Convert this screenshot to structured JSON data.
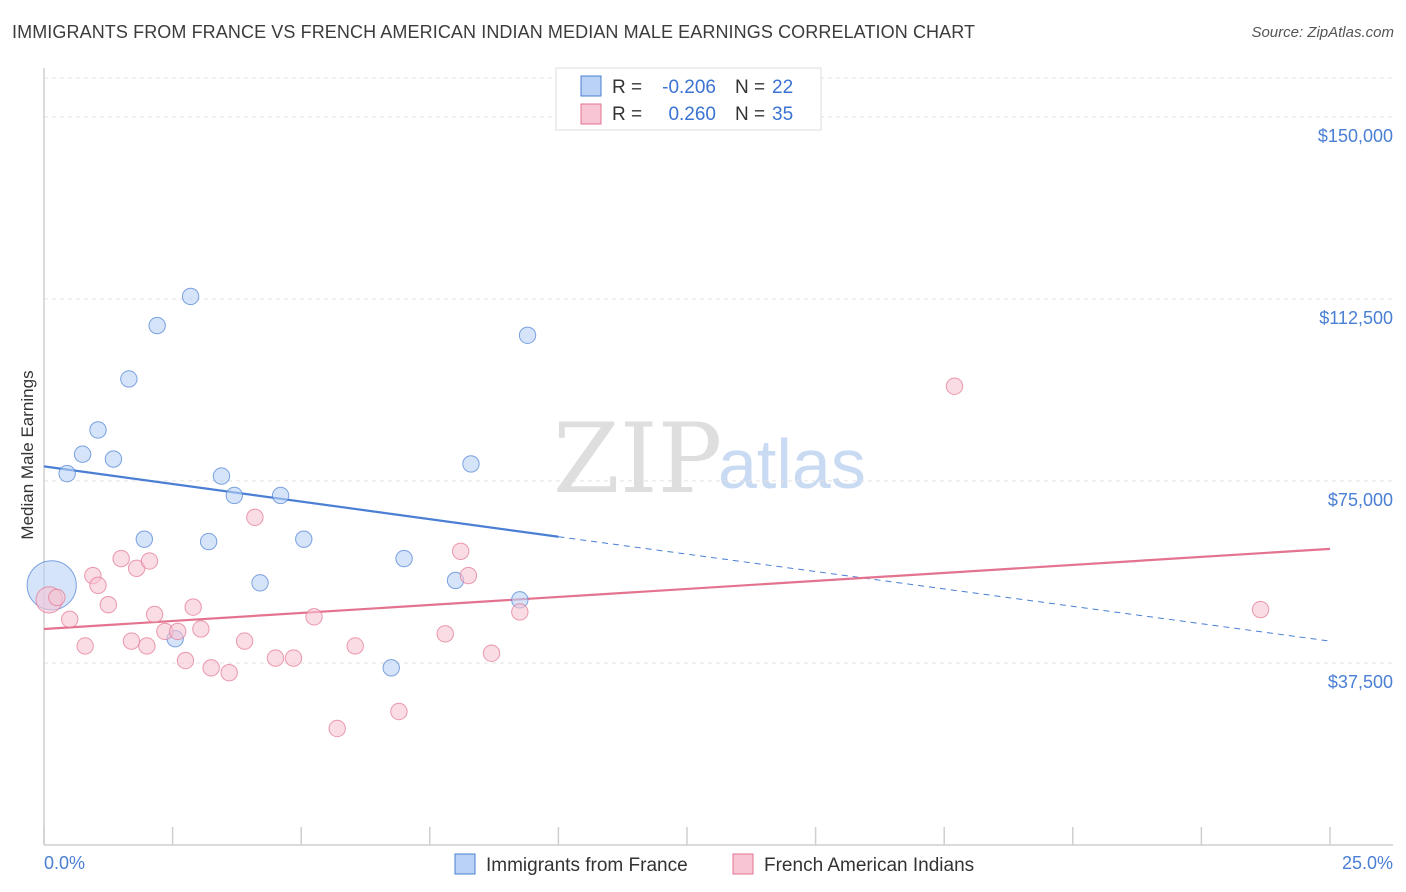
{
  "title": "IMMIGRANTS FROM FRANCE VS FRENCH AMERICAN INDIAN MEDIAN MALE EARNINGS CORRELATION CHART",
  "source": "Source: ZipAtlas.com",
  "watermark": {
    "zip": "ZIP",
    "atlas": "atlas"
  },
  "legend_top": [
    {
      "r_label": "R =",
      "r_value": "-0.206",
      "n_label": "N =",
      "n_value": "22",
      "color": "#4a7fd4",
      "fill": "#b9d2f5"
    },
    {
      "r_label": "R =",
      "r_value": "0.260",
      "n_label": "N =",
      "n_value": "35",
      "color": "#e3738f",
      "fill": "#f7c5d3"
    }
  ],
  "chart_data": {
    "type": "scatter",
    "xlabel": "",
    "ylabel": "Median Male Earnings",
    "xlim": [
      0,
      25
    ],
    "ylim": [
      0,
      158000
    ],
    "x_tick_labels": [
      "0.0%",
      "25.0%"
    ],
    "y_ticks": [
      37500,
      75000,
      112500,
      150000
    ],
    "y_tick_labels": [
      "$37,500",
      "$75,000",
      "$112,500",
      "$150,000"
    ],
    "series": [
      {
        "name": "Immigrants from France",
        "color": "#4a7fd4",
        "fill": "#b9d2f5",
        "points": [
          [
            0.15,
            53500,
            30
          ],
          [
            0.45,
            76500,
            10
          ],
          [
            0.75,
            80500,
            10
          ],
          [
            1.05,
            85500,
            10
          ],
          [
            1.35,
            79500,
            10
          ],
          [
            1.65,
            96000,
            10
          ],
          [
            1.95,
            63000,
            10
          ],
          [
            2.2,
            107000,
            10
          ],
          [
            2.55,
            42500,
            10
          ],
          [
            2.85,
            113000,
            10
          ],
          [
            3.2,
            62500,
            10
          ],
          [
            3.45,
            76000,
            10
          ],
          [
            3.7,
            72000,
            10
          ],
          [
            4.2,
            54000,
            10
          ],
          [
            4.6,
            72000,
            10
          ],
          [
            5.05,
            63000,
            10
          ],
          [
            6.75,
            36500,
            10
          ],
          [
            7.0,
            59000,
            10
          ],
          [
            8.0,
            54500,
            10
          ],
          [
            8.3,
            78500,
            10
          ],
          [
            9.25,
            50500,
            10
          ],
          [
            9.4,
            105000,
            10
          ]
        ]
      },
      {
        "name": "French American Indians",
        "color": "#e3738f",
        "fill": "#f7c5d3",
        "points": [
          [
            0.1,
            50500,
            16
          ],
          [
            0.25,
            51000,
            10
          ],
          [
            0.5,
            46500,
            10
          ],
          [
            0.8,
            41000,
            10
          ],
          [
            0.95,
            55500,
            10
          ],
          [
            1.05,
            53500,
            10
          ],
          [
            1.25,
            49500,
            10
          ],
          [
            1.5,
            59000,
            10
          ],
          [
            1.7,
            42000,
            10
          ],
          [
            1.8,
            57000,
            10
          ],
          [
            2.0,
            41000,
            10
          ],
          [
            2.05,
            58500,
            10
          ],
          [
            2.15,
            47500,
            10
          ],
          [
            2.35,
            44000,
            10
          ],
          [
            2.6,
            44000,
            10
          ],
          [
            2.75,
            38000,
            10
          ],
          [
            2.9,
            49000,
            10
          ],
          [
            3.05,
            44500,
            10
          ],
          [
            3.25,
            36500,
            10
          ],
          [
            3.6,
            35500,
            10
          ],
          [
            3.9,
            42000,
            10
          ],
          [
            4.1,
            67500,
            10
          ],
          [
            4.5,
            38500,
            10
          ],
          [
            4.85,
            38500,
            10
          ],
          [
            5.25,
            47000,
            10
          ],
          [
            5.7,
            24000,
            10
          ],
          [
            6.05,
            41000,
            10
          ],
          [
            6.9,
            27500,
            10
          ],
          [
            7.8,
            43500,
            10
          ],
          [
            8.1,
            60500,
            10
          ],
          [
            8.25,
            55500,
            10
          ],
          [
            8.7,
            39500,
            10
          ],
          [
            9.25,
            48000,
            10
          ],
          [
            17.7,
            94500,
            10
          ],
          [
            23.65,
            48500,
            10
          ]
        ]
      }
    ],
    "trend_lines": [
      {
        "series": "Immigrants from France",
        "x": [
          0,
          10.0
        ],
        "y": [
          78000,
          63500
        ],
        "dashed_to_x": 25,
        "dashed_to_y": 42000
      },
      {
        "series": "French American Indians",
        "x": [
          0,
          25
        ],
        "y": [
          44500,
          61000
        ]
      }
    ],
    "legend_position": "top-center",
    "grid": true
  },
  "bottom_legend": [
    {
      "label": "Immigrants from France",
      "color": "#4a7fd4",
      "fill": "#b9d2f5"
    },
    {
      "label": "French American Indians",
      "color": "#e3738f",
      "fill": "#f7c5d3"
    }
  ]
}
